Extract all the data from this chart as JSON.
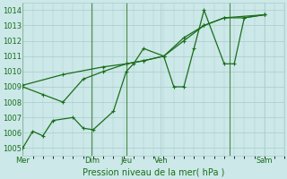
{
  "xlabel": "Pression niveau de la mer( hPa )",
  "bg_color": "#cce8e8",
  "grid_color": "#aacccc",
  "line_color": "#1a6e1a",
  "ylim": [
    1004.5,
    1014.5
  ],
  "ytick_labels": [
    "1005",
    "1006",
    "1007",
    "1008",
    "1009",
    "1010",
    "1011",
    "1012",
    "1013",
    "1014"
  ],
  "ytick_values": [
    1005,
    1006,
    1007,
    1008,
    1009,
    1010,
    1011,
    1012,
    1013,
    1014
  ],
  "xtick_positions": [
    0,
    0.571,
    0.857,
    1.143,
    1.714,
    2.0
  ],
  "xtick_labels": [
    "Mer",
    "Dim",
    "Jeu",
    "Ven",
    "",
    "Sam"
  ],
  "xlim": [
    0,
    2.1
  ],
  "vline_positions": [
    0,
    0.571,
    0.857,
    1.714
  ],
  "line1_x": [
    0,
    0.083,
    0.167,
    0.25,
    0.417,
    0.5,
    0.583,
    0.75,
    0.857,
    0.917,
    1.0,
    1.167,
    1.25,
    1.333,
    1.417,
    1.5,
    1.667,
    1.75,
    1.833,
    2.0
  ],
  "line1_y": [
    1005.0,
    1006.1,
    1005.8,
    1006.8,
    1007.0,
    1006.3,
    1006.2,
    1007.4,
    1010.0,
    1010.5,
    1011.5,
    1011.0,
    1009.0,
    1009.0,
    1011.5,
    1014.0,
    1010.5,
    1010.5,
    1013.5,
    1013.7
  ],
  "line2_x": [
    0,
    0.167,
    0.333,
    0.5,
    0.667,
    0.857,
    1.0,
    1.167,
    1.333,
    1.5,
    1.667,
    1.833,
    2.0
  ],
  "line2_y": [
    1009.0,
    1008.5,
    1008.0,
    1009.5,
    1010.0,
    1010.5,
    1010.7,
    1011.0,
    1012.0,
    1013.0,
    1013.5,
    1013.5,
    1013.7
  ],
  "line3_x": [
    0,
    0.333,
    0.667,
    0.857,
    1.0,
    1.167,
    1.333,
    1.5,
    1.667,
    2.0
  ],
  "line3_y": [
    1009.1,
    1009.8,
    1010.3,
    1010.5,
    1010.7,
    1011.0,
    1012.2,
    1013.0,
    1013.5,
    1013.7
  ],
  "minor_xtick_step": 0.0833,
  "xlabel_fontsize": 7,
  "tick_fontsize": 6
}
